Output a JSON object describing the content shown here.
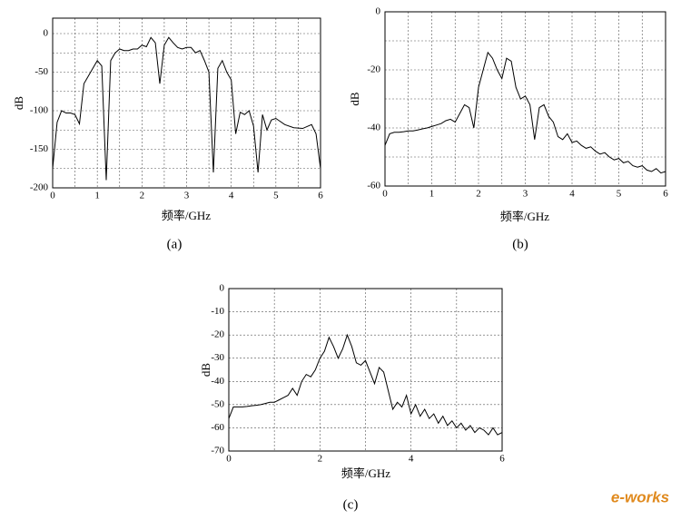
{
  "chart_data": [
    {
      "type": "line",
      "ylabel": "dB",
      "xlabel": "频率/GHz",
      "caption": "(a)",
      "color": "#000000",
      "xlim": [
        0,
        6
      ],
      "ylim": [
        -200,
        20
      ],
      "xticks": [
        0,
        1,
        2,
        3,
        4,
        5,
        6
      ],
      "yticks": [
        0,
        -50,
        -100,
        -150,
        -200
      ],
      "grid": true,
      "minor_grid": "both",
      "x": [
        0,
        0.1,
        0.2,
        0.3,
        0.4,
        0.5,
        0.6,
        0.7,
        0.8,
        0.9,
        1.0,
        1.1,
        1.2,
        1.3,
        1.4,
        1.5,
        1.6,
        1.7,
        1.8,
        1.9,
        2.0,
        2.1,
        2.2,
        2.3,
        2.4,
        2.5,
        2.6,
        2.7,
        2.8,
        2.9,
        3.0,
        3.1,
        3.2,
        3.3,
        3.4,
        3.5,
        3.6,
        3.7,
        3.8,
        3.9,
        4.0,
        4.1,
        4.2,
        4.3,
        4.4,
        4.5,
        4.6,
        4.7,
        4.8,
        4.9,
        5.0,
        5.2,
        5.4,
        5.6,
        5.8,
        5.9,
        6.0
      ],
      "values": [
        -175,
        -115,
        -100,
        -103,
        -103,
        -105,
        -117,
        -65,
        -55,
        -45,
        -35,
        -42,
        -190,
        -35,
        -25,
        -20,
        -22,
        -22,
        -20,
        -20,
        -15,
        -17,
        -5,
        -12,
        -65,
        -15,
        -5,
        -12,
        -18,
        -20,
        -18,
        -18,
        -25,
        -22,
        -35,
        -50,
        -180,
        -45,
        -35,
        -50,
        -60,
        -130,
        -102,
        -105,
        -100,
        -120,
        -180,
        -105,
        -125,
        -112,
        -110,
        -118,
        -122,
        -123,
        -118,
        -130,
        -175
      ]
    },
    {
      "type": "line",
      "ylabel": "dB",
      "xlabel": "频率/GHz",
      "caption": "(b)",
      "color": "#000000",
      "xlim": [
        0,
        6
      ],
      "ylim": [
        -60,
        0
      ],
      "xticks": [
        0,
        1,
        2,
        3,
        4,
        5,
        6
      ],
      "yticks": [
        0,
        -20,
        -40,
        -60
      ],
      "grid": true,
      "minor_grid": "both",
      "x": [
        0,
        0.1,
        0.2,
        0.3,
        0.4,
        0.5,
        0.6,
        0.7,
        0.8,
        0.9,
        1.0,
        1.1,
        1.2,
        1.3,
        1.4,
        1.5,
        1.6,
        1.7,
        1.8,
        1.9,
        2.0,
        2.1,
        2.2,
        2.3,
        2.4,
        2.5,
        2.6,
        2.7,
        2.8,
        2.9,
        3.0,
        3.1,
        3.2,
        3.3,
        3.4,
        3.5,
        3.6,
        3.7,
        3.8,
        3.9,
        4.0,
        4.1,
        4.2,
        4.3,
        4.4,
        4.5,
        4.6,
        4.7,
        4.8,
        4.9,
        5.0,
        5.1,
        5.2,
        5.3,
        5.4,
        5.5,
        5.6,
        5.7,
        5.8,
        5.9,
        6.0
      ],
      "values": [
        -46,
        -42,
        -41.5,
        -41.5,
        -41.3,
        -41,
        -41,
        -40.7,
        -40.3,
        -40,
        -39.5,
        -39,
        -38.5,
        -37.5,
        -37,
        -38,
        -35,
        -32,
        -33,
        -40,
        -26,
        -20,
        -14,
        -16,
        -20,
        -23,
        -16,
        -17,
        -26,
        -30,
        -29,
        -32,
        -44,
        -33,
        -32,
        -36,
        -38,
        -43,
        -44,
        -42,
        -45,
        -44.5,
        -46,
        -47,
        -46.5,
        -48,
        -49,
        -48.5,
        -50,
        -51,
        -50.5,
        -52,
        -51.5,
        -53,
        -53.5,
        -53,
        -54.5,
        -55,
        -54,
        -55.5,
        -55
      ]
    },
    {
      "type": "line",
      "ylabel": "dB",
      "xlabel": "频率/GHz",
      "caption": "(c)",
      "color": "#000000",
      "xlim": [
        0,
        6
      ],
      "ylim": [
        -70,
        0
      ],
      "xticks": [
        0,
        2,
        4,
        6
      ],
      "yticks": [
        0,
        -10,
        -20,
        -30,
        -40,
        -50,
        -60,
        -70
      ],
      "grid": true,
      "minor_grid": "x",
      "x": [
        0,
        0.1,
        0.2,
        0.3,
        0.4,
        0.5,
        0.6,
        0.7,
        0.8,
        0.9,
        1.0,
        1.1,
        1.2,
        1.3,
        1.4,
        1.5,
        1.6,
        1.7,
        1.8,
        1.9,
        2.0,
        2.1,
        2.2,
        2.3,
        2.4,
        2.5,
        2.6,
        2.7,
        2.8,
        2.9,
        3.0,
        3.1,
        3.2,
        3.3,
        3.4,
        3.5,
        3.6,
        3.7,
        3.8,
        3.9,
        4.0,
        4.1,
        4.2,
        4.3,
        4.4,
        4.5,
        4.6,
        4.7,
        4.8,
        4.9,
        5.0,
        5.1,
        5.2,
        5.3,
        5.4,
        5.5,
        5.6,
        5.7,
        5.8,
        5.9,
        6.0
      ],
      "values": [
        -56,
        -51,
        -51,
        -51,
        -50.8,
        -50.5,
        -50.3,
        -50,
        -49.5,
        -49,
        -49,
        -48,
        -47,
        -46,
        -43,
        -46,
        -40,
        -37,
        -38,
        -35,
        -30,
        -27,
        -21,
        -25,
        -30,
        -26,
        -20,
        -25,
        -32,
        -33,
        -31,
        -36,
        -41,
        -34,
        -36,
        -44,
        -52,
        -49,
        -51,
        -46,
        -54,
        -50,
        -55,
        -52,
        -56,
        -54,
        -58,
        -55,
        -59,
        -57,
        -60,
        -58,
        -61,
        -59,
        -62,
        -60,
        -61,
        -63,
        -60,
        -63,
        -62
      ]
    }
  ],
  "watermark": "e-works"
}
